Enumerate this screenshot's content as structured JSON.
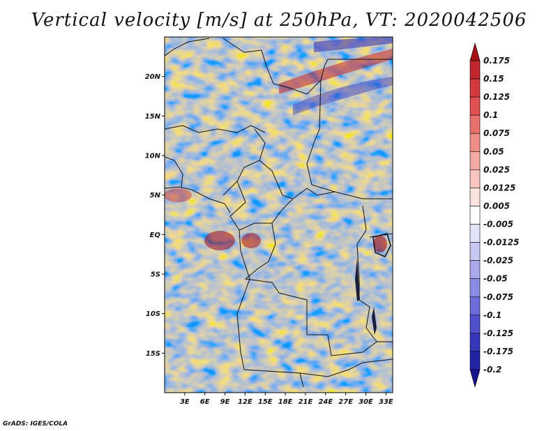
{
  "title": "Vertical velocity [m/s] at 250hPa, VT: 2020042506",
  "footer": "GrADS: IGES/COLA",
  "map": {
    "lon_range": [
      0,
      34
    ],
    "lat_range": [
      -20,
      25
    ],
    "lat_ticks": [
      {
        "value": 20,
        "label": "20N"
      },
      {
        "value": 15,
        "label": "15N"
      },
      {
        "value": 10,
        "label": "10N"
      },
      {
        "value": 5,
        "label": "5N"
      },
      {
        "value": 0,
        "label": "EQ"
      },
      {
        "value": -5,
        "label": "5S"
      },
      {
        "value": -10,
        "label": "10S"
      },
      {
        "value": -15,
        "label": "15S"
      }
    ],
    "lon_ticks": [
      {
        "value": 3,
        "label": "3E"
      },
      {
        "value": 6,
        "label": "6E"
      },
      {
        "value": 9,
        "label": "9E"
      },
      {
        "value": 12,
        "label": "12E"
      },
      {
        "value": 15,
        "label": "15E"
      },
      {
        "value": 18,
        "label": "18E"
      },
      {
        "value": 21,
        "label": "21E"
      },
      {
        "value": 24,
        "label": "24E"
      },
      {
        "value": 27,
        "label": "27E"
      },
      {
        "value": 30,
        "label": "30E"
      },
      {
        "value": 33,
        "label": "33E"
      }
    ]
  },
  "colorbar": {
    "labels": [
      "0.175",
      "0.15",
      "0.125",
      "0.1",
      "0.075",
      "0.05",
      "0.025",
      "0.0125",
      "0.005",
      "-0.005",
      "-0.0125",
      "-0.025",
      "-0.05",
      "-0.075",
      "-0.1",
      "-0.125",
      "-0.175",
      "-0.2"
    ],
    "colors": [
      "#a50f15",
      "#c0272d",
      "#d3383b",
      "#e0514f",
      "#e8716b",
      "#ef8f87",
      "#f4aaa2",
      "#f8c6bf",
      "#fbe3df",
      "#ffffff",
      "#e3e3fa",
      "#c7c7f4",
      "#a9a9ec",
      "#8b8be3",
      "#6c6cd8",
      "#5050cc",
      "#3636bb",
      "#2222a6",
      "#14148c"
    ]
  }
}
